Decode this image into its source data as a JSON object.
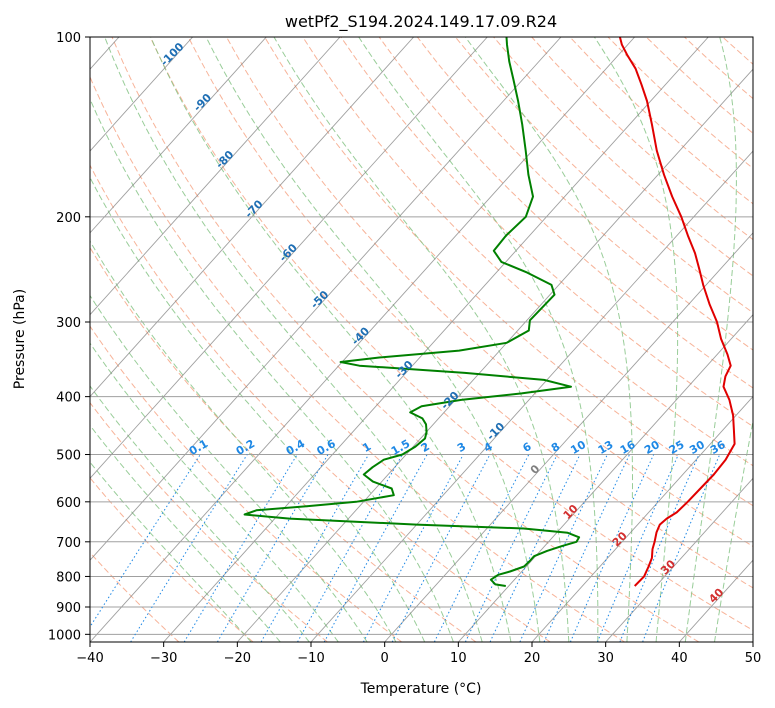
{
  "chart_data": {
    "type": "line",
    "title": "wetPf2_S194.2024.149.17.09.R24",
    "xlabel": "Temperature (°C)",
    "ylabel": "Pressure (hPa)",
    "xlim": [
      -40,
      50
    ],
    "ylim": [
      1030,
      100
    ],
    "y_scale": "log",
    "grid": true,
    "x_ticks": [
      -40,
      -30,
      -20,
      -10,
      0,
      10,
      20,
      30,
      40,
      50
    ],
    "y_ticks": [
      100,
      200,
      300,
      400,
      500,
      600,
      700,
      800,
      900,
      1000
    ],
    "skew_deg_per_decade": 73,
    "colors": {
      "temperature": "#e00000",
      "dewpoint": "#008000",
      "dry_adiabat": "#f5a080",
      "moist_adiabat": "#80c080",
      "mixing_ratio": "#1e88e5",
      "isotherm": "#808080",
      "isobar": "#a0a0a0",
      "mixing_label": "#1e88e5",
      "dry_label": "#d32f2f",
      "moist_label_cold": "#1f6fb4",
      "moist_label_warm": "#808080"
    },
    "series": [
      {
        "key": "temperature",
        "points": [
          [
            830,
            27.1
          ],
          [
            800,
            27.2
          ],
          [
            770,
            26.6
          ],
          [
            745,
            26.0
          ],
          [
            720,
            25.0
          ],
          [
            700,
            24.4
          ],
          [
            675,
            23.5
          ],
          [
            655,
            23.0
          ],
          [
            640,
            23.2
          ],
          [
            625,
            23.8
          ],
          [
            600,
            24.0
          ],
          [
            570,
            24.1
          ],
          [
            540,
            24.2
          ],
          [
            510,
            24.0
          ],
          [
            480,
            23.3
          ],
          [
            455,
            21.5
          ],
          [
            430,
            19.6
          ],
          [
            405,
            17.2
          ],
          [
            385,
            14.8
          ],
          [
            370,
            13.8
          ],
          [
            355,
            13.2
          ],
          [
            340,
            11.4
          ],
          [
            320,
            8.6
          ],
          [
            300,
            6.0
          ],
          [
            280,
            2.8
          ],
          [
            260,
            -0.4
          ],
          [
            245,
            -2.8
          ],
          [
            230,
            -5.4
          ],
          [
            215,
            -8.5
          ],
          [
            200,
            -11.7
          ],
          [
            185,
            -15.4
          ],
          [
            170,
            -19.2
          ],
          [
            155,
            -23.1
          ],
          [
            140,
            -27.0
          ],
          [
            128,
            -30.5
          ],
          [
            120,
            -33.3
          ],
          [
            113,
            -36.0
          ],
          [
            107,
            -38.9
          ],
          [
            103,
            -40.8
          ],
          [
            100,
            -42.0
          ]
        ]
      },
      {
        "key": "dewpoint",
        "points": [
          [
            830,
            9.6
          ],
          [
            825,
            8.0
          ],
          [
            810,
            6.8
          ],
          [
            795,
            7.2
          ],
          [
            785,
            8.4
          ],
          [
            770,
            9.7
          ],
          [
            755,
            9.8
          ],
          [
            740,
            9.8
          ],
          [
            725,
            10.9
          ],
          [
            712,
            12.3
          ],
          [
            700,
            13.8
          ],
          [
            688,
            13.6
          ],
          [
            676,
            11.5
          ],
          [
            665,
            5.0
          ],
          [
            655,
            -10.0
          ],
          [
            640,
            -28.0
          ],
          [
            630,
            -34.6
          ],
          [
            620,
            -33.5
          ],
          [
            610,
            -27.0
          ],
          [
            600,
            -21.0
          ],
          [
            585,
            -16.7
          ],
          [
            570,
            -17.8
          ],
          [
            555,
            -21.2
          ],
          [
            540,
            -23.3
          ],
          [
            525,
            -23.0
          ],
          [
            510,
            -22.4
          ],
          [
            500,
            -20.5
          ],
          [
            485,
            -19.7
          ],
          [
            470,
            -19.4
          ],
          [
            458,
            -20.0
          ],
          [
            445,
            -21.0
          ],
          [
            435,
            -22.2
          ],
          [
            425,
            -24.6
          ],
          [
            415,
            -23.8
          ],
          [
            405,
            -19.2
          ],
          [
            395,
            -11.8
          ],
          [
            385,
            -5.9
          ],
          [
            375,
            -10.4
          ],
          [
            365,
            -22.0
          ],
          [
            355,
            -37.2
          ],
          [
            350,
            -40.2
          ],
          [
            344,
            -35.5
          ],
          [
            335,
            -25.5
          ],
          [
            325,
            -20.0
          ],
          [
            310,
            -18.5
          ],
          [
            298,
            -19.6
          ],
          [
            285,
            -19.5
          ],
          [
            270,
            -19.4
          ],
          [
            260,
            -21.0
          ],
          [
            248,
            -25.8
          ],
          [
            238,
            -30.6
          ],
          [
            228,
            -33.0
          ],
          [
            215,
            -33.2
          ],
          [
            200,
            -32.8
          ],
          [
            185,
            -34.3
          ],
          [
            170,
            -37.6
          ],
          [
            155,
            -40.9
          ],
          [
            140,
            -44.6
          ],
          [
            128,
            -48.0
          ],
          [
            118,
            -51.2
          ],
          [
            110,
            -54.0
          ],
          [
            103,
            -56.4
          ],
          [
            100,
            -57.4
          ]
        ]
      }
    ],
    "mixing_ratio_lines": [
      0.1,
      0.2,
      0.4,
      0.6,
      1,
      1.5,
      2,
      3,
      4,
      6,
      8,
      10,
      13,
      16,
      20,
      25,
      30,
      36
    ],
    "mixing_ratio_labels": [
      "0.1",
      "0.2",
      "0.4",
      "0.6",
      "1",
      "1.5",
      "2",
      "3",
      "4",
      "6",
      "8",
      "10",
      "13",
      "16",
      "20",
      "25",
      "30",
      "36"
    ],
    "moist_adiabat_labels": [
      {
        "t": -100,
        "text": "-100",
        "p": 108
      },
      {
        "t": -90,
        "text": "-90",
        "p": 130
      },
      {
        "t": -80,
        "text": "-80",
        "p": 162
      },
      {
        "t": -70,
        "text": "-70",
        "p": 196
      },
      {
        "t": -60,
        "text": "-60",
        "p": 232
      },
      {
        "t": -50,
        "text": "-50",
        "p": 278
      },
      {
        "t": -40,
        "text": "-40",
        "p": 320
      },
      {
        "t": -30,
        "text": "-30",
        "p": 364
      },
      {
        "t": -20,
        "text": "-20",
        "p": 410
      },
      {
        "t": -10,
        "text": "-10",
        "p": 462
      },
      {
        "t": 0,
        "text": "0",
        "p": 535
      }
    ],
    "dry_adiabat_labels": [
      {
        "t": 10,
        "text": "10",
        "p": 630
      },
      {
        "t": 20,
        "text": "20",
        "p": 700
      },
      {
        "t": 30,
        "text": "30",
        "p": 780
      },
      {
        "t": 40,
        "text": "40",
        "p": 870
      }
    ]
  }
}
